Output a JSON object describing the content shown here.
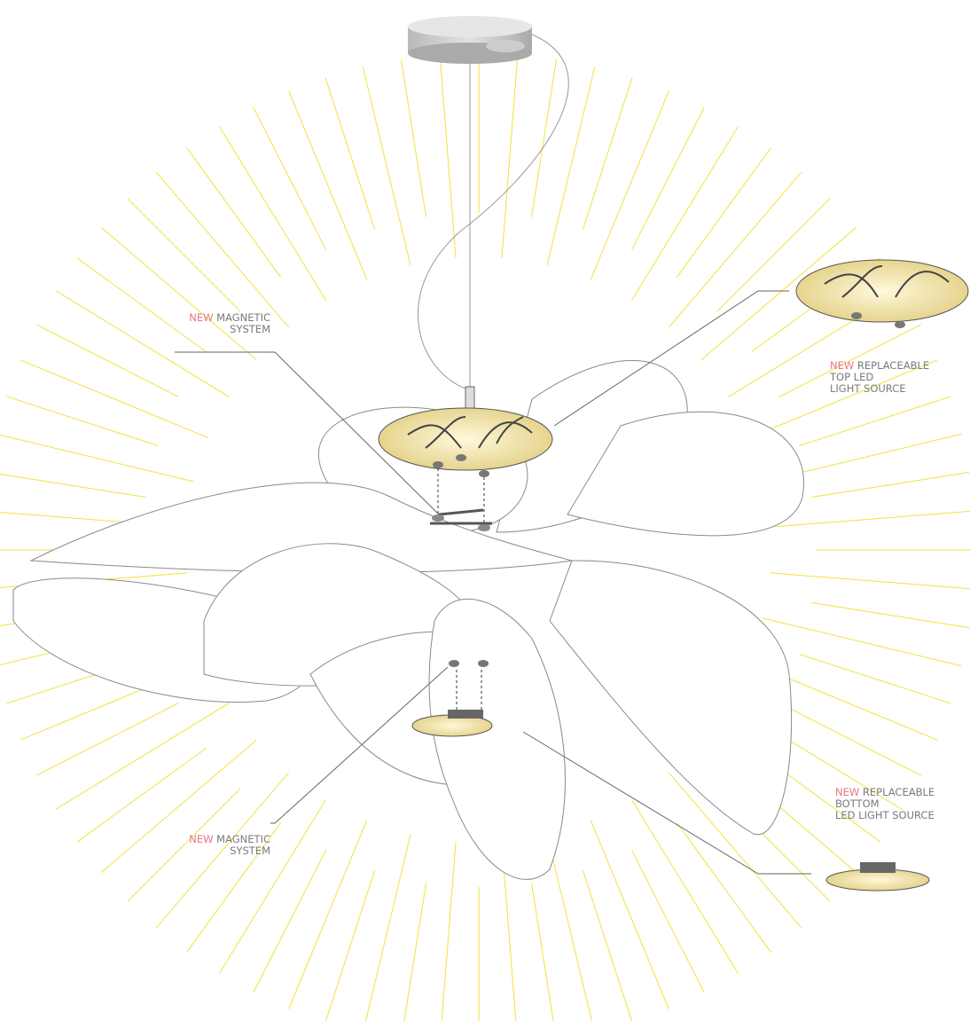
{
  "callouts": [
    {
      "tag": "NEW",
      "lines": [
        "MAGNETIC",
        "SYSTEM"
      ]
    },
    {
      "tag": "NEW",
      "lines": [
        "REPLACEABLE",
        "TOP LED",
        "LIGHT SOURCE"
      ]
    },
    {
      "tag": "NEW",
      "lines": [
        "MAGNETIC",
        "SYSTEM"
      ]
    },
    {
      "tag": "NEW",
      "lines": [
        "REPLACEABLE",
        "BOTTOM",
        "LED LIGHT SOURCE"
      ]
    }
  ]
}
